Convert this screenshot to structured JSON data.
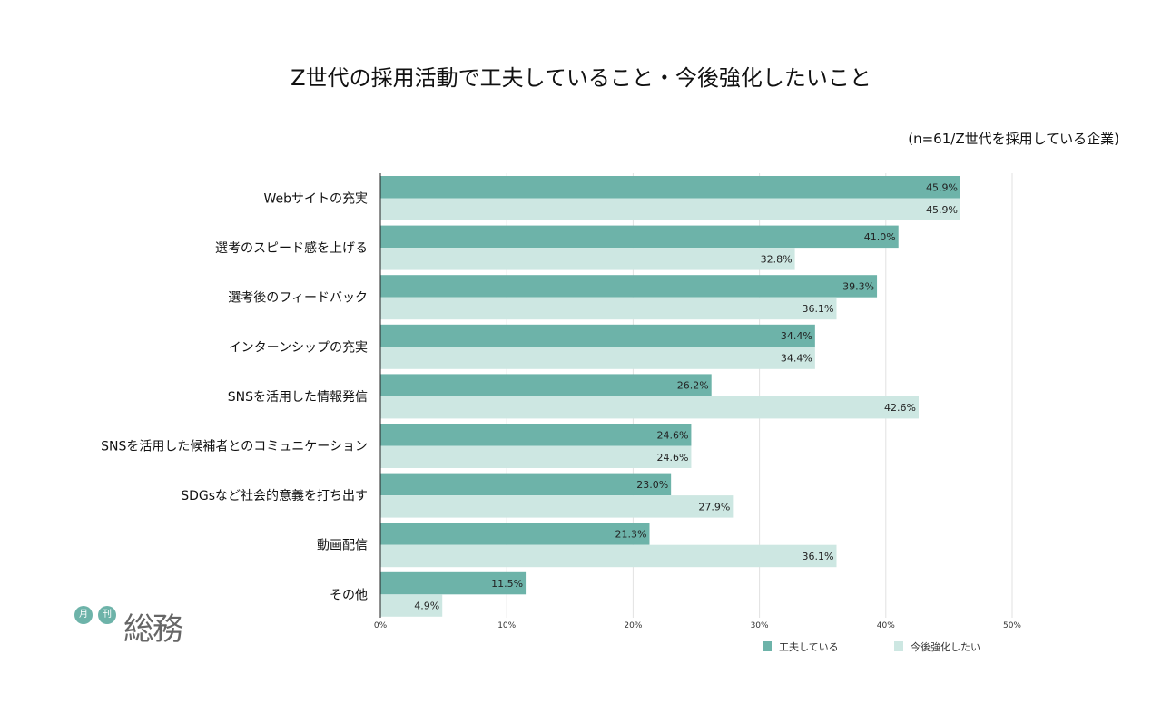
{
  "chart_data": {
    "type": "bar",
    "orientation": "horizontal",
    "title": "Z世代の採用活動で工夫していること・今後強化したいこと",
    "subtitle": "(n=61/Z世代を採用している企業)",
    "categories": [
      "Webサイトの充実",
      "選考のスピード感を上げる",
      "選考後のフィードバック",
      "インターンシップの充実",
      "SNSを活用した情報発信",
      "SNSを活用した候補者とのコミュニケーション",
      "SDGsなど社会的意義を打ち出す",
      "動画配信",
      "その他"
    ],
    "series": [
      {
        "name": "工夫している",
        "color": "#6db3a9",
        "values": [
          45.9,
          41.0,
          39.3,
          34.4,
          26.2,
          24.6,
          23.0,
          21.3,
          11.5
        ]
      },
      {
        "name": "今後強化したい",
        "color": "#cde7e2",
        "values": [
          45.9,
          32.8,
          36.1,
          34.4,
          42.6,
          24.6,
          27.9,
          36.1,
          4.9
        ]
      }
    ],
    "xlim": [
      0,
      50
    ],
    "xticks": [
      "0%",
      "10%",
      "20%",
      "30%",
      "40%",
      "50%"
    ],
    "grid": true,
    "legend": "bottom-right"
  },
  "logo": {
    "small1": "月",
    "small2": "刊",
    "name": "総務"
  }
}
